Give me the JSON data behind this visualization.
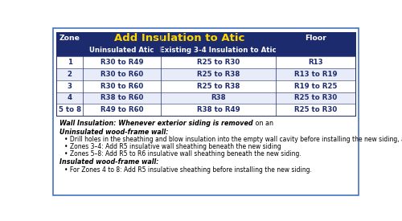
{
  "title": "Add Insulation to Atic",
  "title_color": "#FFD700",
  "header_bg": "#1C2B6E",
  "header_text_color": "#FFFFFF",
  "col1_header": "Zone",
  "col2_header": "Uninsulated Atic",
  "col3_header": "Existing 3-4 Insulation to Atic",
  "col4_header": "Floor",
  "rows": [
    [
      "1",
      "R30 to R49",
      "R25 to R30",
      "R13"
    ],
    [
      "2",
      "R30 to R60",
      "R25 to R38",
      "R13 to R19"
    ],
    [
      "3",
      "R30 to R60",
      "R25 to R38",
      "R19 to R25"
    ],
    [
      "4",
      "R38 to R60",
      "R38",
      "R25 to R30"
    ],
    [
      "5 to 8",
      "R49 to R60",
      "R38 to R49",
      "R25 to R30"
    ]
  ],
  "row_colors": [
    "#FFFFFF",
    "#E8ECF8",
    "#FFFFFF",
    "#E8ECF8",
    "#FFFFFF"
  ],
  "cell_text_color": "#1C2B6E",
  "border_color": "#1C2B6E",
  "note_bold_italic": "Wall Insulation: Whenever exterior siding is removed",
  "note_normal": " on an",
  "section1_title": "Uninsulated wood-frame wall:",
  "section1_bullets": [
    "Drill holes in the sheathing and blow insulation into the empty wall cavity before installing the new siding, and",
    "Zones 3–4: Add R5 insulative wall sheathing beneath the new siding",
    "Zones 5–8: Add R5 to R6 insulative wall sheathing beneath the new siding."
  ],
  "section2_title": "Insulated wood-frame wall:",
  "section2_bullets": [
    "For Zones 4 to 8: Add R5 insulative sheathing before installing the new siding."
  ],
  "outer_border_color": "#4472C4",
  "font_size_title": 9.5,
  "font_size_subheader": 6.2,
  "font_size_cell": 6.2,
  "font_size_note": 5.8
}
